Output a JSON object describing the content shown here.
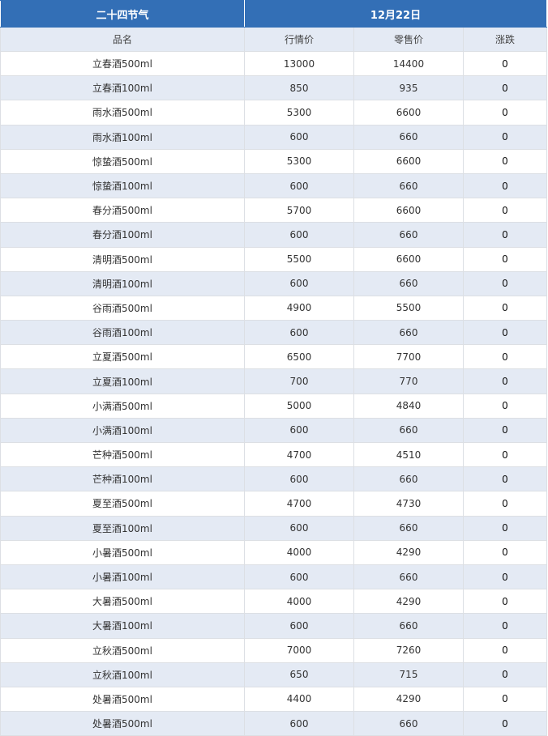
{
  "header": {
    "title": "二十四节气",
    "date": "12月22日"
  },
  "columns": [
    "品名",
    "行情价",
    "零售价",
    "涨跌"
  ],
  "rows": [
    [
      "立春酒500ml",
      "13000",
      "14400",
      "0"
    ],
    [
      "立春酒100ml",
      "850",
      "935",
      "0"
    ],
    [
      "雨水酒500ml",
      "5300",
      "6600",
      "0"
    ],
    [
      "雨水酒100ml",
      "600",
      "660",
      "0"
    ],
    [
      "惊蛰酒500ml",
      "5300",
      "6600",
      "0"
    ],
    [
      "惊蛰酒100ml",
      "600",
      "660",
      "0"
    ],
    [
      "春分酒500ml",
      "5700",
      "6600",
      "0"
    ],
    [
      "春分酒100ml",
      "600",
      "660",
      "0"
    ],
    [
      "清明酒500ml",
      "5500",
      "6600",
      "0"
    ],
    [
      "清明酒100ml",
      "600",
      "660",
      "0"
    ],
    [
      "谷雨酒500ml",
      "4900",
      "5500",
      "0"
    ],
    [
      "谷雨酒100ml",
      "600",
      "660",
      "0"
    ],
    [
      "立夏酒500ml",
      "6500",
      "7700",
      "0"
    ],
    [
      "立夏酒100ml",
      "700",
      "770",
      "0"
    ],
    [
      "小满酒500ml",
      "5000",
      "4840",
      "0"
    ],
    [
      "小满酒100ml",
      "600",
      "660",
      "0"
    ],
    [
      "芒种酒500ml",
      "4700",
      "4510",
      "0"
    ],
    [
      "芒种酒100ml",
      "600",
      "660",
      "0"
    ],
    [
      "夏至酒500ml",
      "4700",
      "4730",
      "0"
    ],
    [
      "夏至酒100ml",
      "600",
      "660",
      "0"
    ],
    [
      "小暑酒500ml",
      "4000",
      "4290",
      "0"
    ],
    [
      "小暑酒100ml",
      "600",
      "660",
      "0"
    ],
    [
      "大暑酒500ml",
      "4000",
      "4290",
      "0"
    ],
    [
      "大暑酒100ml",
      "600",
      "660",
      "0"
    ],
    [
      "立秋酒500ml",
      "7000",
      "7260",
      "0"
    ],
    [
      "立秋酒100ml",
      "650",
      "715",
      "0"
    ],
    [
      "处暑酒500ml",
      "4400",
      "4290",
      "0"
    ],
    [
      "处暑酒500ml",
      "600",
      "660",
      "0"
    ]
  ]
}
